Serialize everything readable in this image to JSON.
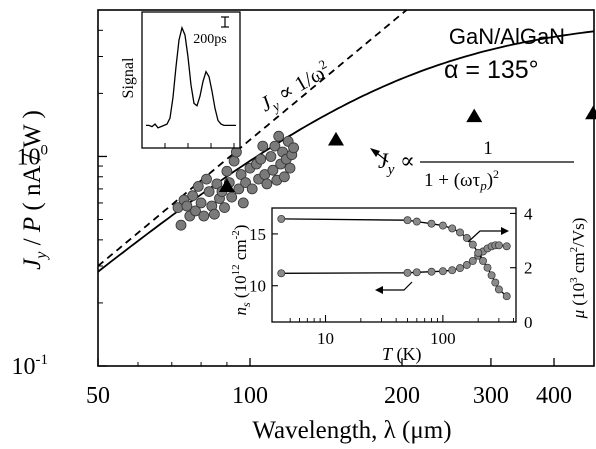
{
  "chart_data": [
    {
      "id": "main",
      "type": "scatter",
      "x_scale": "log",
      "y_scale": "log",
      "xlim": [
        50,
        480
      ],
      "ylim": [
        0.1,
        5.0
      ],
      "xlabel": "Wavelength, λ  (μm)",
      "ylabel": "J_y / P  ( nA / W )",
      "xtick_labels": [
        "50",
        "100",
        "200",
        "300",
        "400"
      ],
      "xticks": [
        50,
        100,
        200,
        300,
        400
      ],
      "ytick_labels": [
        {
          "mant": "10",
          "exp": "0",
          "value": 1.0
        },
        {
          "mant": "10",
          "exp": "-1",
          "value": 0.1
        }
      ],
      "annotations": {
        "sample": "GaN/AlGaN",
        "angle": "α = 135°",
        "dashed_label": "J_y ∝ 1/ω²",
        "solid_label_prefix": "J_y ∝",
        "solid_label_num": "1",
        "solid_label_den": "1 + (ωτ_p)²"
      },
      "series": [
        {
          "name": "triangles",
          "marker": "triangle",
          "points": [
            [
              90,
              0.72
            ],
            [
              148,
              1.2
            ],
            [
              278,
              1.55
            ],
            [
              478,
              1.6
            ]
          ]
        },
        {
          "name": "circles",
          "marker": "circle",
          "color": "#7a7a7a",
          "points": [
            [
              72,
              0.57
            ],
            [
              73,
              0.47
            ],
            [
              74,
              0.62
            ],
            [
              75,
              0.58
            ],
            [
              76,
              0.52
            ],
            [
              77,
              0.65
            ],
            [
              78,
              0.55
            ],
            [
              79,
              0.72
            ],
            [
              80,
              0.6
            ],
            [
              81,
              0.52
            ],
            [
              82,
              0.78
            ],
            [
              83,
              0.68
            ],
            [
              84,
              0.58
            ],
            [
              85,
              0.53
            ],
            [
              86,
              0.74
            ],
            [
              87,
              0.63
            ],
            [
              88,
              0.68
            ],
            [
              89,
              0.57
            ],
            [
              90,
              0.85
            ],
            [
              91,
              0.75
            ],
            [
              92,
              0.64
            ],
            [
              93,
              0.95
            ],
            [
              94,
              1.05
            ],
            [
              95,
              0.7
            ],
            [
              96,
              0.82
            ],
            [
              97,
              0.6
            ],
            [
              98,
              0.75
            ],
            [
              100,
              0.88
            ],
            [
              101,
              0.7
            ],
            [
              103,
              0.92
            ],
            [
              104,
              0.78
            ],
            [
              105,
              0.97
            ],
            [
              106,
              1.12
            ],
            [
              107,
              0.82
            ],
            [
              108,
              0.74
            ],
            [
              110,
              1.0
            ],
            [
              111,
              0.86
            ],
            [
              112,
              1.12
            ],
            [
              113,
              0.77
            ],
            [
              114,
              1.25
            ],
            [
              115,
              0.92
            ],
            [
              116,
              1.05
            ],
            [
              117,
              0.8
            ],
            [
              118,
              0.97
            ],
            [
              119,
              1.18
            ],
            [
              120,
              0.88
            ],
            [
              121,
              1.02
            ],
            [
              122,
              1.1
            ]
          ]
        },
        {
          "name": "dashed ∝ 1/ω²",
          "line": "dashed",
          "formula": "y = 0.3 * (x/50)^2"
        },
        {
          "name": "solid ∝ 1/(1+(ωτ)²)",
          "line": "solid",
          "formula": "y = 0.3*(x/50)^2 / (1 + 0.065*(x/50)^2)"
        }
      ]
    },
    {
      "id": "inset_signal",
      "type": "line",
      "ylabel": "Signal",
      "scale_bar_label": "200ps",
      "values": [
        0.12,
        0.12,
        0.11,
        0.13,
        0.1,
        0.11,
        0.12,
        0.13,
        0.18,
        0.35,
        0.6,
        0.82,
        0.92,
        0.86,
        0.68,
        0.45,
        0.3,
        0.28,
        0.36,
        0.48,
        0.56,
        0.52,
        0.4,
        0.26,
        0.16,
        0.13,
        0.12,
        0.12,
        0.12,
        0.12,
        0.12
      ]
    },
    {
      "id": "inset_ns_mu",
      "type": "line",
      "x_scale": "log",
      "xlim": [
        3.5,
        420
      ],
      "xlabel": "T (K)",
      "xtick_labels": [
        "10",
        "100"
      ],
      "xticks": [
        10,
        100
      ],
      "y_left_label": "n_s (10¹² cm⁻²)",
      "y_left_ticks": [
        "10",
        "15"
      ],
      "y_left_lim": [
        6.5,
        17.5
      ],
      "y_right_label": "μ (10³ cm²/Vs)",
      "y_right_ticks": [
        "0",
        "2",
        "4"
      ],
      "y_right_lim": [
        0,
        4.2
      ],
      "series": [
        {
          "name": "n_s",
          "axis": "left",
          "x": [
            4.2,
            50,
            60,
            80,
            100,
            120,
            140,
            160,
            180,
            200,
            220,
            240,
            260,
            280,
            300,
            350
          ],
          "y": [
            11.2,
            11.25,
            11.3,
            11.35,
            11.4,
            11.5,
            11.7,
            12.0,
            12.4,
            12.9,
            13.3,
            13.6,
            13.8,
            13.9,
            13.9,
            13.8
          ]
        },
        {
          "name": "μ",
          "axis": "right",
          "x": [
            4.2,
            50,
            60,
            80,
            100,
            120,
            140,
            160,
            180,
            200,
            220,
            240,
            260,
            280,
            300,
            350
          ],
          "y": [
            3.8,
            3.75,
            3.7,
            3.62,
            3.55,
            3.45,
            3.3,
            3.1,
            2.85,
            2.55,
            2.25,
            2.0,
            1.72,
            1.45,
            1.2,
            0.95
          ]
        }
      ]
    }
  ]
}
